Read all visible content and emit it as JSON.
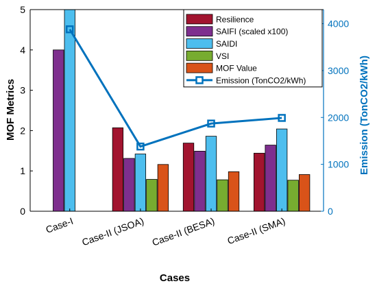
{
  "chart_data": {
    "type": "bar",
    "categories": [
      "Case-I",
      "Case-II (JSOA)",
      "Case-II (BESA)",
      "Case-II (SMA)"
    ],
    "series": [
      {
        "name": "Resilience",
        "color": "#A2142F",
        "values": [
          null,
          2.07,
          1.69,
          1.44
        ]
      },
      {
        "name": "SAIFI (scaled x100)",
        "color": "#7E2F8E",
        "values": [
          4.0,
          1.31,
          1.49,
          1.64
        ]
      },
      {
        "name": "SAIDI",
        "color": "#4DBEEE",
        "values": [
          5.0,
          1.42,
          1.86,
          2.04
        ]
      },
      {
        "name": "VSI",
        "color": "#77AC30",
        "values": [
          null,
          0.79,
          0.78,
          0.77
        ]
      },
      {
        "name": "MOF Value",
        "color": "#D95319",
        "values": [
          null,
          1.16,
          0.98,
          0.91
        ]
      }
    ],
    "line_series": {
      "name": "Emission (TonCO2/kWh)",
      "color": "#0072BD",
      "axis": "right",
      "values": [
        3880,
        1380,
        1870,
        1990
      ]
    },
    "xlabel": "Cases",
    "ylabel": "MOF Metrics",
    "y2label": "Emission (TonCO2/kWh)",
    "ylim": [
      0,
      5
    ],
    "y2lim": [
      0,
      4300
    ],
    "yticks": [
      0,
      1,
      2,
      3,
      4,
      5
    ],
    "y2ticks": [
      0,
      1000,
      2000,
      3000,
      4000
    ],
    "legend_position": "top-right",
    "grid": false
  }
}
